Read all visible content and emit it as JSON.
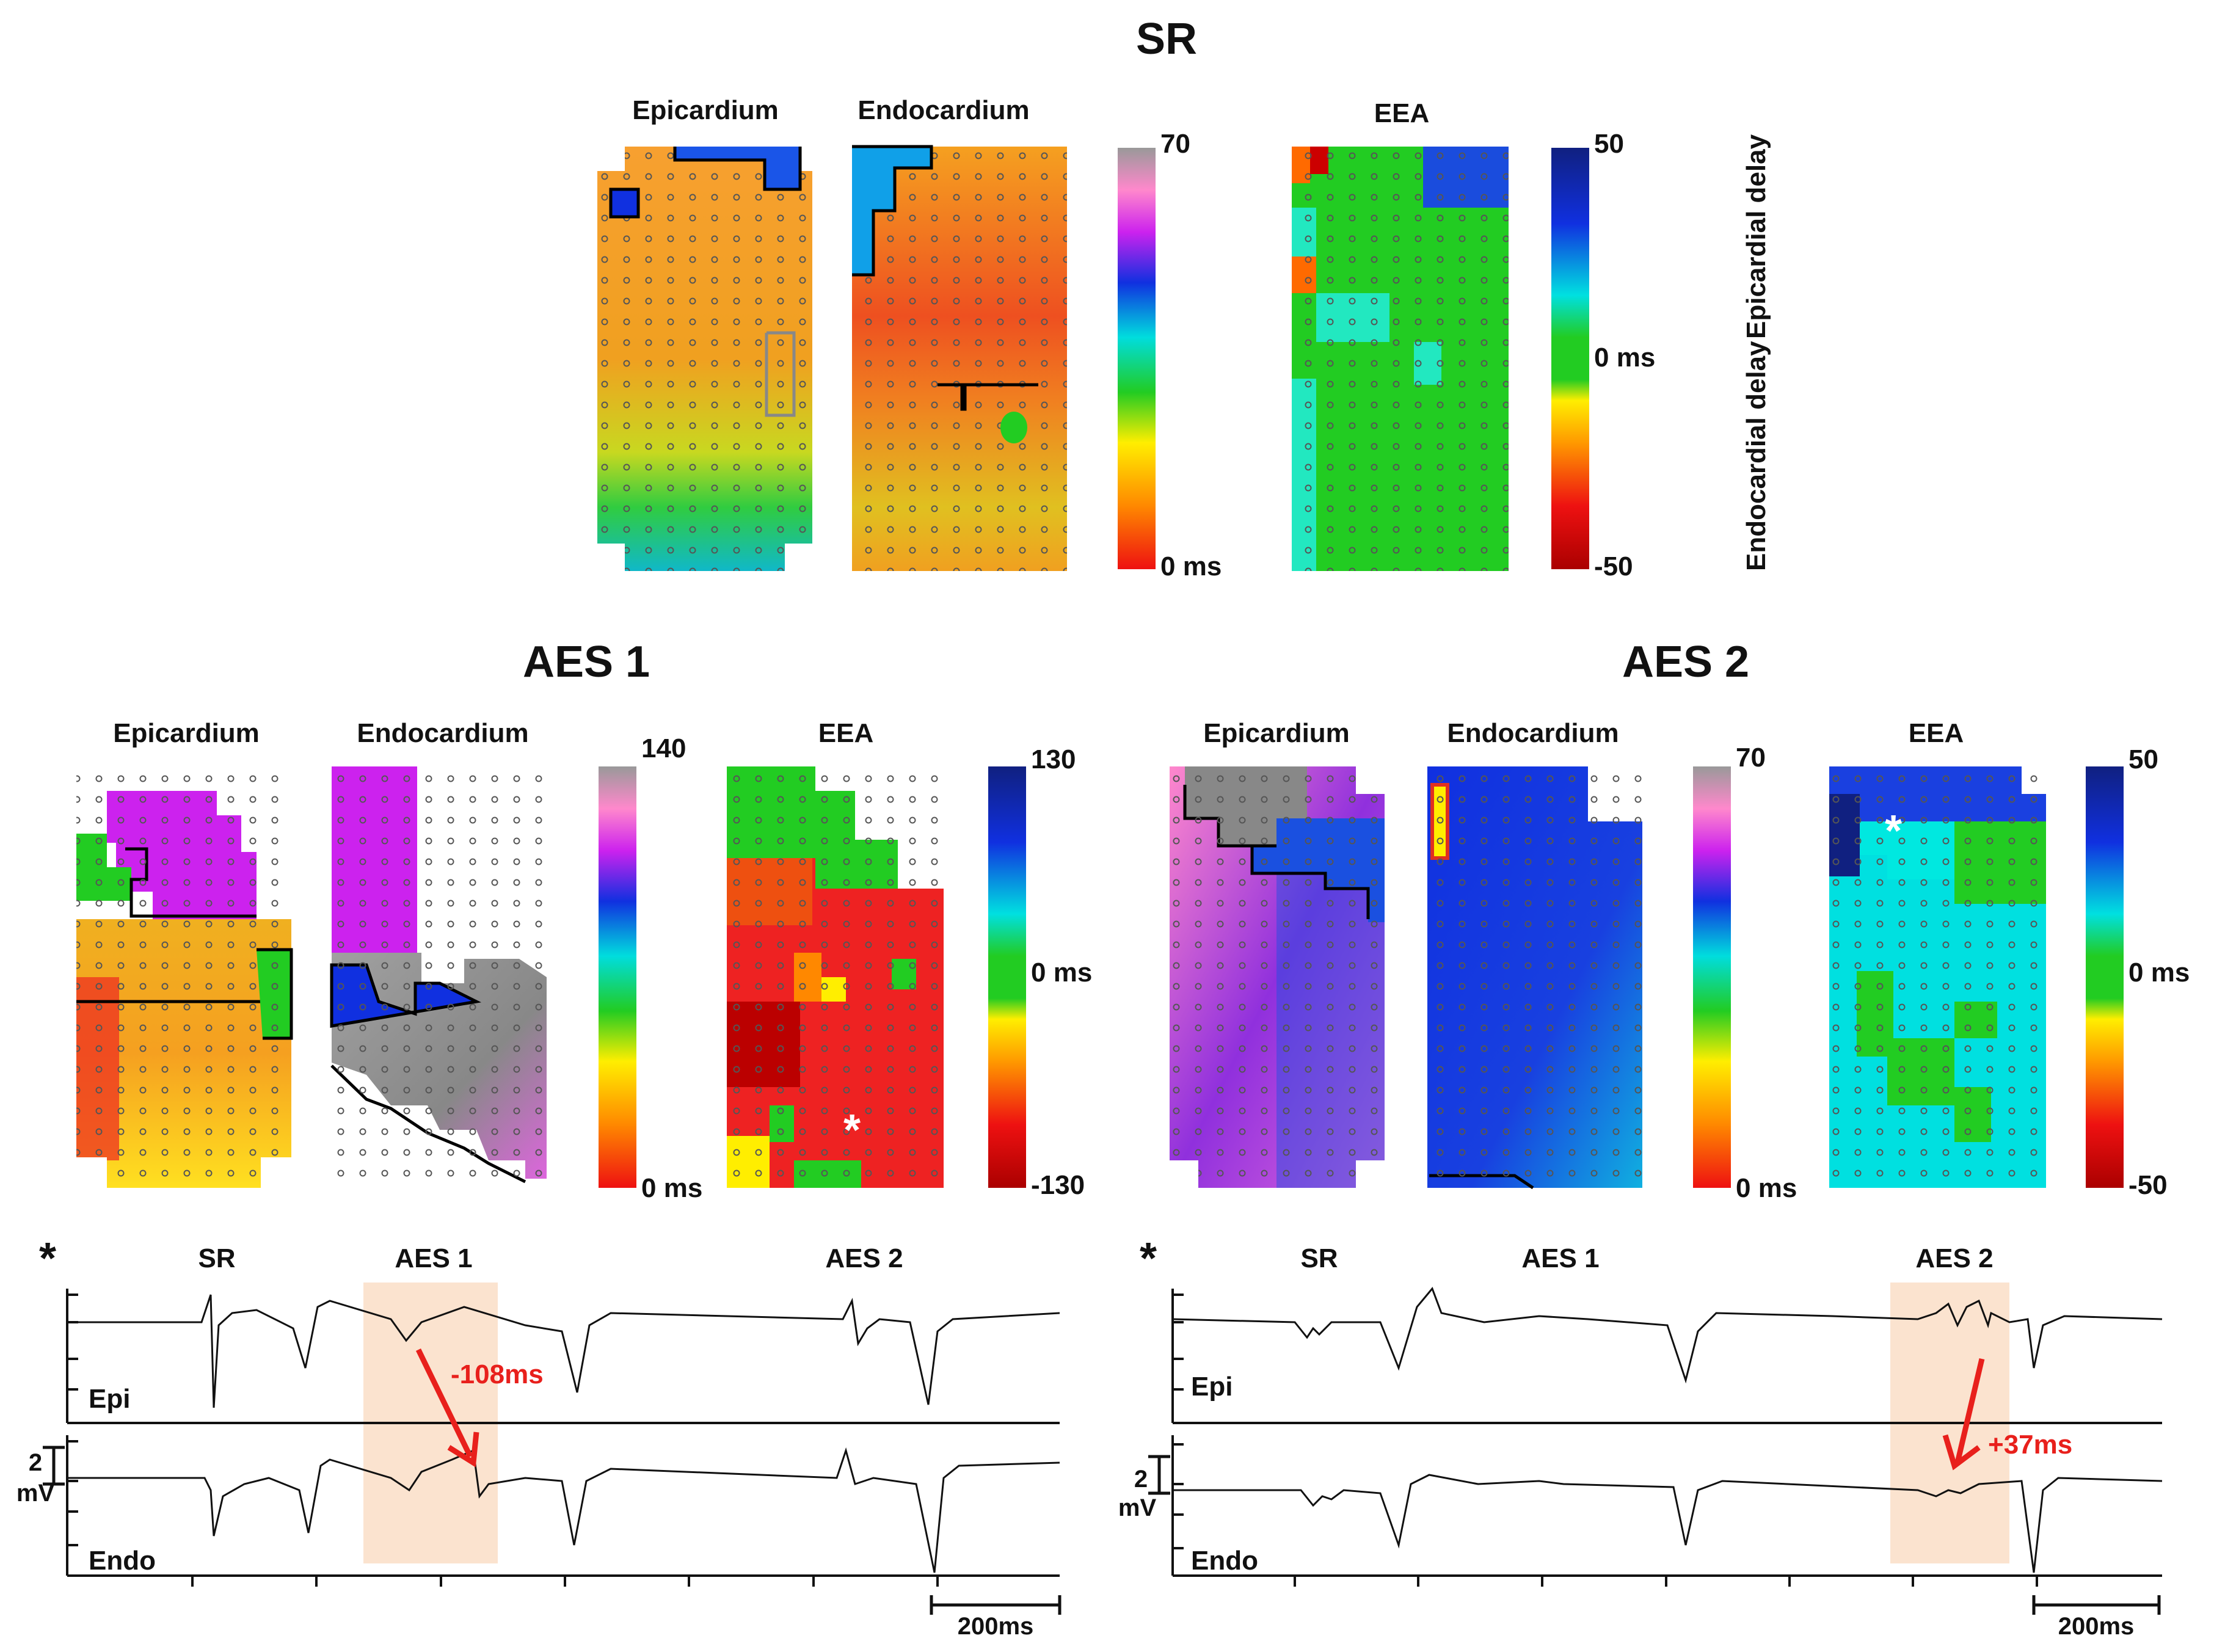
{
  "sr": {
    "title": "SR",
    "epi_label": "Epicardium",
    "endo_label": "Endocardium",
    "eea_label": "EEA",
    "scale_max": "70",
    "scale_min": "0 ms",
    "eea_max": "50",
    "eea_mid": "0 ms",
    "eea_min": "-50",
    "epi_delay": "Epicardial delay",
    "endo_delay": "Endocardial delay"
  },
  "aes1": {
    "title": "AES 1",
    "epi_label": "Epicardium",
    "endo_label": "Endocardium",
    "eea_label": "EEA",
    "scale_max": "140",
    "scale_min": "0 ms",
    "eea_max": "130",
    "eea_mid": "0 ms",
    "eea_min": "-130",
    "star": "*"
  },
  "aes2": {
    "title": "AES 2",
    "epi_label": "Epicardium",
    "endo_label": "Endocardium",
    "eea_label": "EEA",
    "scale_max": "70",
    "scale_min": "0 ms",
    "eea_max": "50",
    "eea_mid": "0 ms",
    "eea_min": "-50",
    "star": "*"
  },
  "trace_left": {
    "star": "*",
    "sr": "SR",
    "aes1": "AES 1",
    "aes2": "AES 2",
    "epi": "Epi",
    "endo": "Endo",
    "delay": "-108ms",
    "scale_v": "2",
    "scale_unit": "mV",
    "time_scale": "200ms"
  },
  "trace_right": {
    "star": "*",
    "sr": "SR",
    "aes1": "AES 1",
    "aes2": "AES 2",
    "epi": "Epi",
    "endo": "Endo",
    "delay": "+37ms",
    "scale_v": "2",
    "scale_unit": "mV",
    "time_scale": "200ms"
  },
  "colors": {
    "act_orange": "#f5a623",
    "act_red": "#e8201c",
    "eea_green": "#22cc22",
    "eea_blue": "#1010cc",
    "highlight": "#fbe3cf",
    "arrow": "#e8201c"
  }
}
